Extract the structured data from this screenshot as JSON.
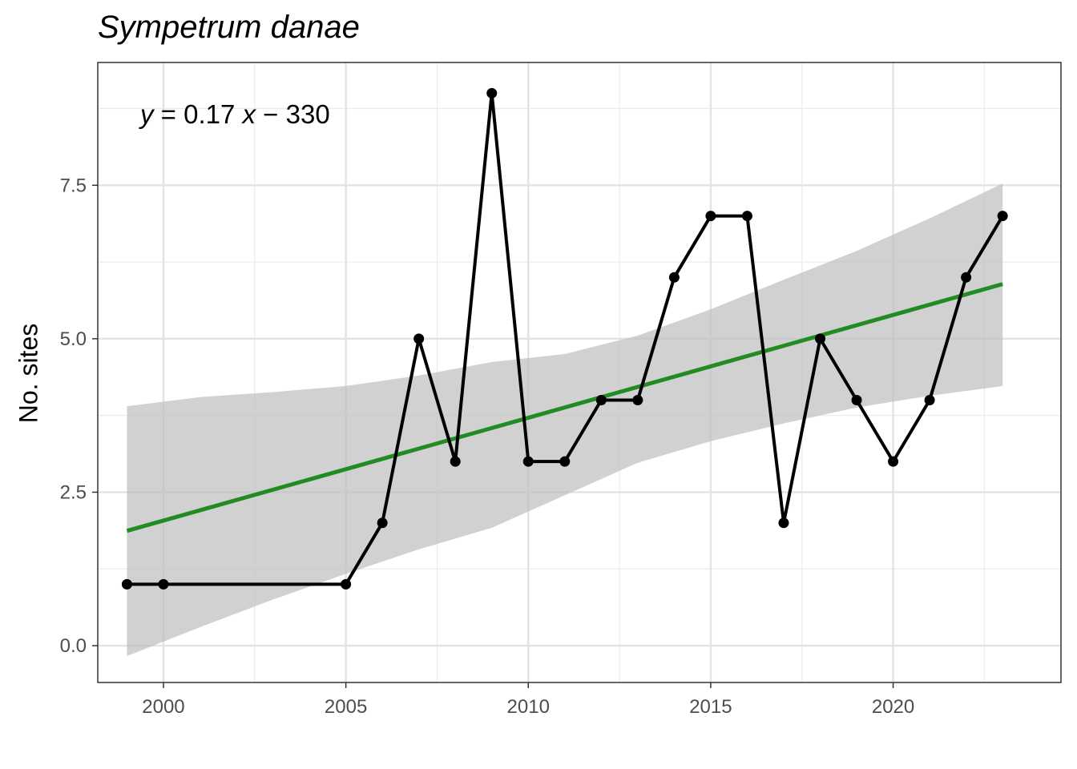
{
  "chart_data": {
    "type": "line",
    "title": "Sympetrum danae",
    "xlabel": "",
    "ylabel": "No. sites",
    "xlim": [
      1998.2,
      2024.6
    ],
    "ylim": [
      -0.6,
      9.5
    ],
    "x_ticks": [
      2000,
      2005,
      2010,
      2015,
      2020
    ],
    "y_ticks": [
      0.0,
      2.5,
      5.0,
      7.5
    ],
    "x_tick_labels": [
      "2000",
      "2005",
      "2010",
      "2015",
      "2020"
    ],
    "y_tick_labels": [
      "0.0",
      "2.5",
      "5.0",
      "7.5"
    ],
    "grid": true,
    "series": [
      {
        "x": [
          1999,
          2000,
          2005,
          2006,
          2007,
          2008,
          2009,
          2010,
          2011,
          2012,
          2013,
          2014,
          2015,
          2016,
          2017,
          2018,
          2019,
          2020,
          2021,
          2022,
          2023
        ],
        "y": [
          1,
          1,
          1,
          2,
          5,
          3,
          9,
          3,
          3,
          4,
          4,
          6,
          7,
          7,
          2,
          5,
          4,
          3,
          4,
          6,
          7
        ],
        "color": "#000000"
      }
    ],
    "trend": {
      "slope": 0.17,
      "intercept": -330,
      "x_range": [
        1999,
        2023
      ],
      "fit": [
        [
          1999,
          1.87
        ],
        [
          2023,
          5.89
        ]
      ],
      "color": "#228B22",
      "confidence_band": {
        "color": "#bfbfbf",
        "x": [
          1999,
          2001,
          2003,
          2005,
          2007,
          2009,
          2011,
          2013,
          2015,
          2017,
          2019,
          2021,
          2023
        ],
        "lower": [
          -0.17,
          0.3,
          0.75,
          1.17,
          1.57,
          1.92,
          2.45,
          2.98,
          3.33,
          3.62,
          3.88,
          4.07,
          4.23
        ],
        "upper": [
          3.9,
          4.05,
          4.13,
          4.23,
          4.4,
          4.62,
          4.75,
          5.05,
          5.48,
          5.96,
          6.43,
          6.96,
          7.53
        ]
      }
    },
    "annotation": {
      "y_symbol": "y",
      "equals_coef": " = 0.17 ",
      "x_symbol": "x",
      "tail": " − 330"
    }
  }
}
